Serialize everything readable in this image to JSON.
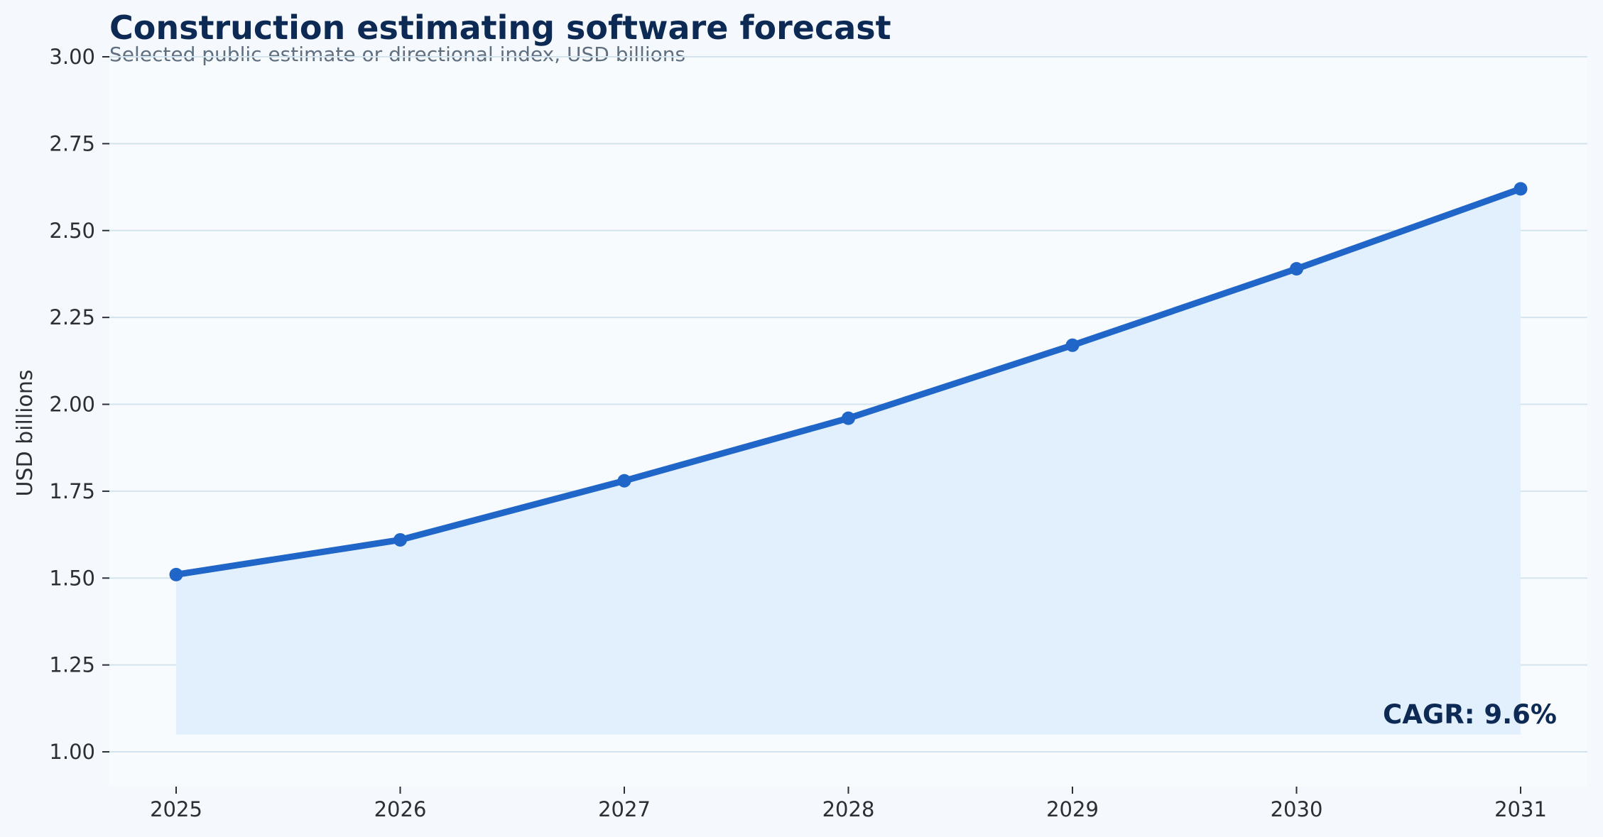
{
  "chart_data": {
    "type": "area",
    "title": "Construction estimating software forecast",
    "subtitle": "Selected public estimate or directional index, USD billions",
    "xlabel": "",
    "ylabel": "USD billions",
    "categories": [
      "2025",
      "2026",
      "2027",
      "2028",
      "2029",
      "2030",
      "2031"
    ],
    "series": [
      {
        "values": [
          1.51,
          1.61,
          1.78,
          1.96,
          2.17,
          2.39,
          2.62
        ]
      }
    ],
    "ylim": [
      0.9,
      3.0
    ],
    "yticks": [
      1.0,
      1.25,
      1.5,
      1.75,
      2.0,
      2.25,
      2.5,
      2.75,
      3.0
    ],
    "ytick_labels": [
      "1.00",
      "1.25",
      "1.50",
      "1.75",
      "2.00",
      "2.25",
      "2.50",
      "2.75",
      "3.00"
    ],
    "area_baseline": 1.05,
    "grid": "horizontal",
    "annotation": "CAGR: 9.6%",
    "colors": {
      "line": "#2065c8",
      "fill": "#e2effc",
      "grid": "#d3e4ee",
      "plot_background": "#f7fbfe",
      "page_background": "#f5f9fd"
    }
  }
}
